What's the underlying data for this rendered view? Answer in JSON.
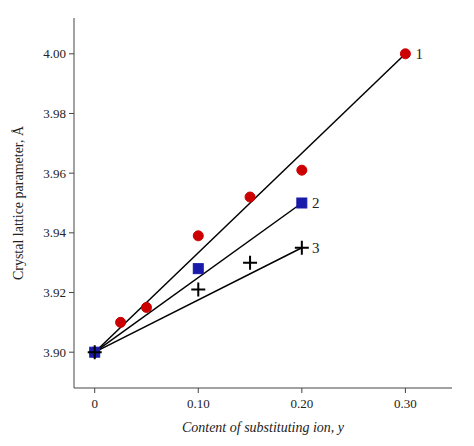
{
  "chart_data": {
    "type": "scatter",
    "x_label": "Content of substituting ion, y",
    "y_label": "Crystal lattice parameter, Å",
    "xlim": [
      -0.02,
      0.345
    ],
    "ylim": [
      3.888,
      4.012
    ],
    "xticks": [
      0,
      {
        "value": 0.1,
        "label": "0.10"
      },
      {
        "value": 0.2,
        "label": "0.20"
      },
      {
        "value": 0.3,
        "label": "0.30"
      }
    ],
    "yticks": [
      {
        "value": 3.9,
        "label": "3.90"
      },
      {
        "value": 3.92,
        "label": "3.92"
      },
      {
        "value": 3.94,
        "label": "3.94"
      },
      {
        "value": 3.96,
        "label": "3.96"
      },
      {
        "value": 3.98,
        "label": "3.98"
      },
      {
        "value": 4.0,
        "label": "4.00"
      }
    ],
    "grid": false,
    "series": [
      {
        "type": "line",
        "color": "#000000",
        "line_style": "solid",
        "x": [
          0.0,
          0.3
        ],
        "values": [
          3.9,
          4.0
        ]
      },
      {
        "type": "scatter",
        "color": "#cc0000",
        "marker": "circle",
        "x": [
          0.0,
          0.025,
          0.05,
          0.1,
          0.15,
          0.2,
          0.3
        ],
        "values": [
          3.9,
          3.91,
          3.915,
          3.939,
          3.952,
          3.961,
          4.0
        ]
      },
      {
        "type": "line",
        "color": "#000000",
        "line_style": "solid",
        "x": [
          0.0,
          0.2
        ],
        "values": [
          3.9,
          3.95
        ]
      },
      {
        "type": "scatter",
        "color": "#1a1aaa",
        "marker": "square",
        "x": [
          0.0,
          0.1,
          0.2
        ],
        "values": [
          3.9,
          3.928,
          3.95
        ]
      },
      {
        "type": "line",
        "color": "#000000",
        "line_style": "solid",
        "x": [
          0.0,
          0.2
        ],
        "values": [
          3.9,
          3.935
        ]
      },
      {
        "type": "scatter",
        "color": "#000000",
        "marker": "plus",
        "x": [
          0.0,
          0.1,
          0.15,
          0.2
        ],
        "values": [
          3.9,
          3.921,
          3.93,
          3.935
        ]
      }
    ],
    "annotations": [
      {
        "text": "1",
        "x": 0.302,
        "y": 4.0
      },
      {
        "text": "2",
        "x": 0.202,
        "y": 3.95
      },
      {
        "text": "3",
        "x": 0.202,
        "y": 3.935
      }
    ]
  }
}
